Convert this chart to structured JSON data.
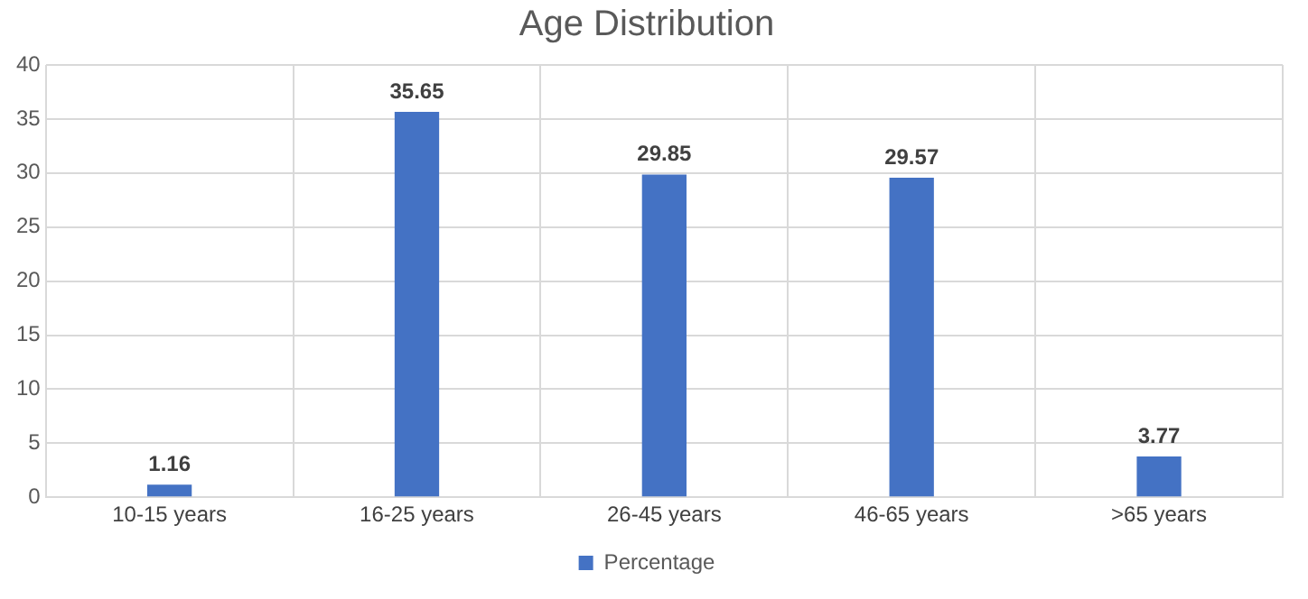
{
  "chart_data": {
    "type": "bar",
    "title": "Age Distribution",
    "categories": [
      "10-15 years",
      "16-25 years",
      "26-45 years",
      "46-65 years",
      ">65 years"
    ],
    "series": [
      {
        "name": "Percentage",
        "color": "#4472c4",
        "values": [
          1.16,
          35.65,
          29.85,
          29.57,
          3.77
        ]
      }
    ],
    "ylim": [
      0,
      40
    ],
    "yticks": [
      0,
      5,
      10,
      15,
      20,
      25,
      30,
      35,
      40
    ],
    "grid": true,
    "legend": "bottom",
    "data_labels": true
  }
}
